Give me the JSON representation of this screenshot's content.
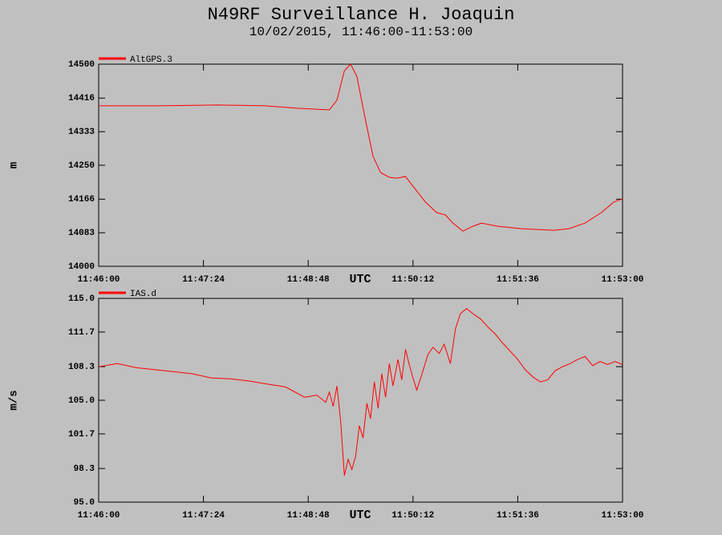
{
  "chart_data": [
    {
      "type": "line",
      "title": "N49RF Surveillance H. Joaquin",
      "subtitle": "10/02/2015, 11:46:00-11:53:00",
      "ylabel": "m",
      "xlabel": "UTC",
      "x": [
        "11:46:00",
        "11:46:50",
        "11:47:35",
        "11:48:13",
        "11:48:39",
        "11:49:05",
        "11:49:11",
        "11:49:17",
        "11:49:22",
        "11:49:27",
        "11:49:34",
        "11:49:40",
        "11:49:46",
        "11:49:53",
        "11:49:59",
        "11:50:06",
        "11:50:12",
        "11:50:22",
        "11:50:31",
        "11:50:38",
        "11:50:44",
        "11:50:52",
        "11:51:00",
        "11:51:07",
        "11:51:20",
        "11:51:39",
        "11:52:05",
        "11:52:17",
        "11:52:30",
        "11:52:43",
        "11:52:53",
        "11:53:00"
      ],
      "series": [
        {
          "name": "AltGPS.3",
          "color": "#ff0000",
          "values": [
            14397,
            14397,
            14399,
            14397,
            14391,
            14387,
            14411,
            14484,
            14500,
            14470,
            14361,
            14272,
            14232,
            14220,
            14218,
            14222,
            14198,
            14159,
            14133,
            14127,
            14107,
            14087,
            14099,
            14107,
            14099,
            14093,
            14089,
            14093,
            14107,
            14133,
            14159,
            14167
          ]
        }
      ],
      "xlim": [
        "11:46:00",
        "11:53:00"
      ],
      "xticks": [
        "11:46:00",
        "11:47:24",
        "11:48:48",
        "11:50:12",
        "11:51:36",
        "11:53:00"
      ],
      "ylim": [
        14000,
        14500
      ],
      "yticks": [
        14000,
        14083,
        14166,
        14250,
        14333,
        14416,
        14500
      ]
    },
    {
      "type": "line",
      "ylabel": "m/s",
      "xlabel": "UTC",
      "x": [
        "11:46:00",
        "11:46:15",
        "11:46:30",
        "11:46:45",
        "11:47:00",
        "11:47:15",
        "11:47:30",
        "11:47:45",
        "11:48:00",
        "11:48:15",
        "11:48:30",
        "11:48:45",
        "11:48:55",
        "11:49:02",
        "11:49:05",
        "11:49:08",
        "11:49:11",
        "11:49:14",
        "11:49:17",
        "11:49:20",
        "11:49:23",
        "11:49:26",
        "11:49:29",
        "11:49:32",
        "11:49:35",
        "11:49:38",
        "11:49:41",
        "11:49:44",
        "11:49:47",
        "11:49:50",
        "11:49:53",
        "11:49:56",
        "11:50:00",
        "11:50:03",
        "11:50:06",
        "11:50:09",
        "11:50:12",
        "11:50:15",
        "11:50:19",
        "11:50:24",
        "11:50:28",
        "11:50:33",
        "11:50:37",
        "11:50:42",
        "11:50:46",
        "11:50:50",
        "11:50:55",
        "11:51:00",
        "11:51:06",
        "11:51:12",
        "11:51:18",
        "11:51:24",
        "11:51:30",
        "11:51:36",
        "11:51:42",
        "11:51:48",
        "11:51:54",
        "11:52:00",
        "11:52:06",
        "11:52:12",
        "11:52:18",
        "11:52:24",
        "11:52:30",
        "11:52:36",
        "11:52:42",
        "11:52:48",
        "11:52:54",
        "11:53:00"
      ],
      "series": [
        {
          "name": "IAS.d",
          "color": "#ff0000",
          "values": [
            108.3,
            108.6,
            108.2,
            108.0,
            107.8,
            107.6,
            107.2,
            107.1,
            106.9,
            106.6,
            106.3,
            105.3,
            105.5,
            104.8,
            105.8,
            104.4,
            106.4,
            103.0,
            97.6,
            99.2,
            98.2,
            99.5,
            102.5,
            101.3,
            104.7,
            103.2,
            106.8,
            104.2,
            107.6,
            105.3,
            108.6,
            106.4,
            109.0,
            107.0,
            110.0,
            108.5,
            107.2,
            106.0,
            107.5,
            109.5,
            110.2,
            109.6,
            110.5,
            108.6,
            112.0,
            113.5,
            114.0,
            113.5,
            113.0,
            112.2,
            111.5,
            110.6,
            109.8,
            109.0,
            108.0,
            107.3,
            106.8,
            107.0,
            107.9,
            108.3,
            108.6,
            109.0,
            109.3,
            108.4,
            108.8,
            108.5,
            108.8,
            108.5
          ]
        }
      ],
      "xlim": [
        "11:46:00",
        "11:53:00"
      ],
      "xticks": [
        "11:46:00",
        "11:47:24",
        "11:48:48",
        "11:50:12",
        "11:51:36",
        "11:53:00"
      ],
      "ylim": [
        95,
        115
      ],
      "yticks": [
        {
          "value": 95,
          "label": "95.0"
        },
        98.3,
        101.7,
        {
          "value": 105,
          "label": "105.0"
        },
        108.3,
        111.7,
        {
          "value": 115,
          "label": "115.0"
        }
      ]
    }
  ]
}
